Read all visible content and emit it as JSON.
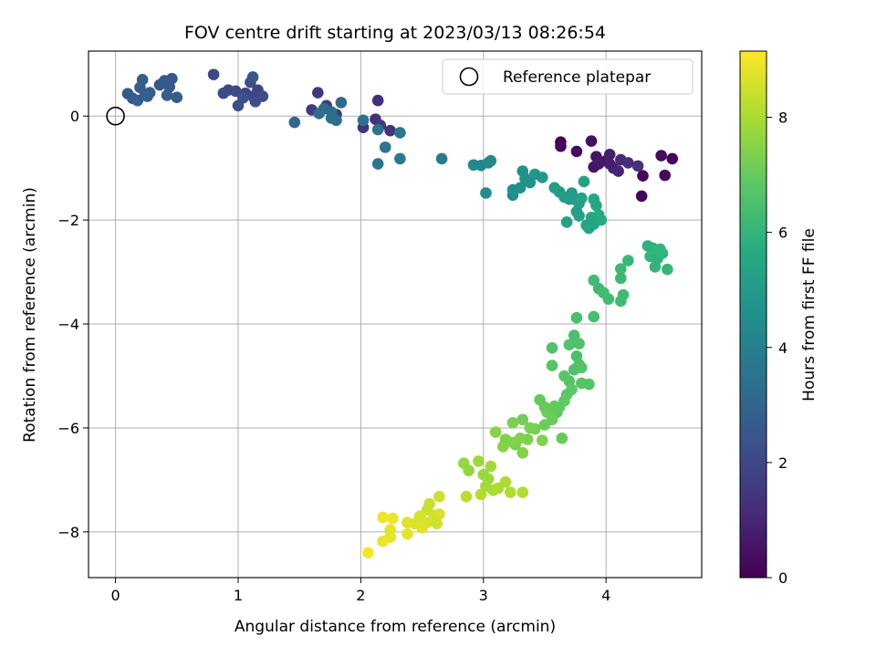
{
  "chart_data": {
    "type": "scatter",
    "title": "FOV centre drift starting at 2023/03/13 08:26:54",
    "xlabel": "Angular distance from reference (arcmin)",
    "ylabel": "Rotation from reference (arcmin)",
    "xlim": [
      -0.22,
      4.78
    ],
    "ylim": [
      -8.88,
      1.25
    ],
    "x_ticks": [
      0,
      1,
      2,
      3,
      4
    ],
    "y_ticks": [
      0,
      -2,
      -4,
      -6,
      -8
    ],
    "grid": true,
    "legend": {
      "placement": "top-right",
      "entries": [
        "Reference platepar"
      ]
    },
    "reference_point": {
      "x": 0,
      "y": 0
    },
    "colorbar": {
      "label": "Hours from first FF file",
      "range": [
        0,
        9.15
      ],
      "ticks": [
        0,
        2,
        4,
        6,
        8
      ],
      "colormap": "viridis"
    },
    "points": [
      [
        3.63,
        -0.5,
        0.1
      ],
      [
        3.63,
        -0.58,
        0.2
      ],
      [
        3.76,
        -0.68,
        0.3
      ],
      [
        3.88,
        -0.48,
        0.4
      ],
      [
        3.92,
        -0.78,
        0.5
      ],
      [
        3.94,
        -0.92,
        0.6
      ],
      [
        4.0,
        -0.86,
        0.7
      ],
      [
        4.03,
        -0.74,
        0.8
      ],
      [
        4.06,
        -1.0,
        0.9
      ],
      [
        4.1,
        -1.06,
        1.0
      ],
      [
        4.12,
        -0.84,
        1.1
      ],
      [
        4.18,
        -0.9,
        1.2
      ],
      [
        4.26,
        -0.96,
        1.3
      ],
      [
        4.3,
        -1.15,
        0.2
      ],
      [
        4.29,
        -1.54,
        0.1
      ],
      [
        4.45,
        -0.76,
        0.3
      ],
      [
        4.48,
        -1.14,
        0.2
      ],
      [
        4.54,
        -0.82,
        0.1
      ],
      [
        3.9,
        -0.98,
        0.5
      ],
      [
        3.95,
        -0.88,
        0.6
      ],
      [
        4.03,
        -0.92,
        0.8
      ],
      [
        2.02,
        -0.22,
        1.4
      ],
      [
        2.12,
        -0.06,
        1.3
      ],
      [
        2.14,
        0.3,
        1.2
      ],
      [
        2.16,
        -0.18,
        1.5
      ],
      [
        2.24,
        -0.28,
        1.4
      ],
      [
        1.6,
        0.12,
        1.6
      ],
      [
        1.65,
        0.45,
        1.5
      ],
      [
        1.8,
        0.03,
        1.5
      ],
      [
        1.72,
        0.2,
        1.6
      ],
      [
        0.8,
        0.8,
        2.0
      ],
      [
        0.88,
        0.44,
        2.1
      ],
      [
        0.98,
        0.48,
        2.0
      ],
      [
        1.06,
        0.44,
        1.9
      ],
      [
        1.1,
        0.65,
        2.2
      ],
      [
        1.12,
        0.38,
        2.0
      ],
      [
        1.16,
        0.5,
        1.9
      ],
      [
        1.2,
        0.38,
        2.1
      ],
      [
        0.92,
        0.5,
        2.1
      ],
      [
        1.0,
        0.2,
        2.3
      ],
      [
        1.04,
        0.35,
        2.4
      ],
      [
        1.12,
        0.75,
        2.5
      ],
      [
        1.14,
        0.28,
        2.2
      ],
      [
        0.1,
        0.43,
        2.6
      ],
      [
        0.14,
        0.34,
        2.6
      ],
      [
        0.18,
        0.3,
        2.7
      ],
      [
        0.2,
        0.55,
        2.7
      ],
      [
        0.22,
        0.7,
        2.8
      ],
      [
        0.24,
        0.4,
        2.6
      ],
      [
        0.28,
        0.45,
        2.7
      ],
      [
        0.36,
        0.6,
        2.5
      ],
      [
        0.4,
        0.68,
        2.6
      ],
      [
        0.42,
        0.4,
        2.7
      ],
      [
        0.44,
        0.56,
        2.6
      ],
      [
        0.46,
        0.72,
        2.5
      ],
      [
        0.5,
        0.36,
        2.8
      ],
      [
        0.26,
        0.38,
        2.9
      ],
      [
        1.46,
        -0.12,
        3.1
      ],
      [
        1.66,
        0.05,
        3.2
      ],
      [
        1.7,
        0.14,
        3.2
      ],
      [
        1.76,
        0.08,
        3.3
      ],
      [
        1.8,
        -0.08,
        3.3
      ],
      [
        1.84,
        0.26,
        3.2
      ],
      [
        1.76,
        -0.04,
        3.4
      ],
      [
        2.02,
        -0.08,
        3.5
      ],
      [
        2.14,
        -0.26,
        3.5
      ],
      [
        2.2,
        -0.6,
        3.6
      ],
      [
        2.14,
        -0.92,
        3.6
      ],
      [
        2.32,
        -0.32,
        3.7
      ],
      [
        2.32,
        -0.82,
        3.7
      ],
      [
        2.66,
        -0.82,
        3.8
      ],
      [
        2.92,
        -0.94,
        4.2
      ],
      [
        2.98,
        -0.95,
        4.2
      ],
      [
        3.04,
        -0.9,
        4.3
      ],
      [
        3.06,
        -0.86,
        4.3
      ],
      [
        3.02,
        -1.48,
        4.4
      ],
      [
        3.24,
        -1.42,
        4.5
      ],
      [
        3.24,
        -1.52,
        4.5
      ],
      [
        3.3,
        -1.38,
        4.6
      ],
      [
        3.32,
        -1.06,
        4.6
      ],
      [
        3.34,
        -1.2,
        4.7
      ],
      [
        3.38,
        -1.28,
        4.7
      ],
      [
        3.42,
        -1.12,
        4.8
      ],
      [
        3.48,
        -1.18,
        4.8
      ],
      [
        3.58,
        -1.38,
        5.0
      ],
      [
        3.62,
        -1.46,
        5.0
      ],
      [
        3.66,
        -1.56,
        5.1
      ],
      [
        3.7,
        -1.6,
        5.1
      ],
      [
        3.72,
        -1.48,
        5.2
      ],
      [
        3.74,
        -1.6,
        5.2
      ],
      [
        3.76,
        -1.84,
        5.1
      ],
      [
        3.78,
        -1.92,
        5.3
      ],
      [
        3.78,
        -1.68,
        5.2
      ],
      [
        3.8,
        -1.58,
        5.3
      ],
      [
        3.82,
        -1.26,
        5.3
      ],
      [
        3.84,
        -2.1,
        5.4
      ],
      [
        3.86,
        -2.16,
        5.4
      ],
      [
        3.88,
        -1.95,
        5.5
      ],
      [
        3.9,
        -2.08,
        5.4
      ],
      [
        3.9,
        -1.6,
        5.5
      ],
      [
        3.92,
        -1.72,
        5.5
      ],
      [
        3.94,
        -1.9,
        5.6
      ],
      [
        3.96,
        -2.0,
        5.6
      ],
      [
        3.68,
        -2.04,
        5.3
      ],
      [
        3.72,
        -1.5,
        5.0
      ],
      [
        4.34,
        -2.5,
        5.9
      ],
      [
        4.38,
        -2.54,
        5.9
      ],
      [
        4.36,
        -2.7,
        6.0
      ],
      [
        4.4,
        -2.9,
        6.0
      ],
      [
        4.42,
        -2.74,
        5.9
      ],
      [
        4.44,
        -2.56,
        6.0
      ],
      [
        4.46,
        -2.64,
        6.0
      ],
      [
        4.5,
        -2.95,
        6.1
      ],
      [
        4.18,
        -2.78,
        6.1
      ],
      [
        4.12,
        -2.94,
        6.2
      ],
      [
        4.12,
        -3.12,
        6.2
      ],
      [
        4.14,
        -3.44,
        6.3
      ],
      [
        4.12,
        -3.56,
        6.3
      ],
      [
        4.02,
        -3.52,
        6.3
      ],
      [
        3.9,
        -3.16,
        6.3
      ],
      [
        3.94,
        -3.32,
        6.2
      ],
      [
        3.98,
        -3.4,
        6.3
      ],
      [
        3.9,
        -3.86,
        6.4
      ],
      [
        3.76,
        -3.88,
        6.5
      ],
      [
        3.74,
        -4.22,
        6.5
      ],
      [
        3.76,
        -4.62,
        6.5
      ],
      [
        3.78,
        -4.38,
        6.6
      ],
      [
        3.7,
        -4.4,
        6.6
      ],
      [
        3.78,
        -4.78,
        6.6
      ],
      [
        3.74,
        -4.88,
        6.6
      ],
      [
        3.8,
        -4.84,
        6.7
      ],
      [
        3.8,
        -5.14,
        6.7
      ],
      [
        3.86,
        -5.16,
        6.7
      ],
      [
        3.7,
        -5.1,
        6.7
      ],
      [
        3.66,
        -5.0,
        6.8
      ],
      [
        3.72,
        -5.26,
        6.8
      ],
      [
        3.68,
        -5.36,
        6.8
      ],
      [
        3.66,
        -5.48,
        6.9
      ],
      [
        3.62,
        -5.6,
        6.9
      ],
      [
        3.6,
        -5.7,
        6.9
      ],
      [
        3.56,
        -4.46,
        6.6
      ],
      [
        3.56,
        -4.8,
        6.7
      ],
      [
        3.64,
        -6.2,
        7.0
      ],
      [
        3.46,
        -5.46,
        7.0
      ],
      [
        3.5,
        -5.6,
        7.0
      ],
      [
        3.52,
        -5.7,
        7.1
      ],
      [
        3.5,
        -5.94,
        7.1
      ],
      [
        3.56,
        -5.84,
        7.1
      ],
      [
        3.58,
        -5.58,
        7.0
      ],
      [
        3.42,
        -6.02,
        7.2
      ],
      [
        3.36,
        -6.22,
        7.3
      ],
      [
        3.32,
        -5.84,
        7.2
      ],
      [
        3.26,
        -6.32,
        7.3
      ],
      [
        3.24,
        -5.9,
        7.3
      ],
      [
        3.24,
        -6.28,
        7.4
      ],
      [
        3.32,
        -6.48,
        7.4
      ],
      [
        3.3,
        -6.2,
        7.4
      ],
      [
        3.18,
        -6.22,
        7.4
      ],
      [
        3.16,
        -6.36,
        7.5
      ],
      [
        3.1,
        -6.08,
        7.5
      ],
      [
        3.48,
        -6.24,
        7.4
      ],
      [
        3.38,
        -6.0,
        7.3
      ],
      [
        2.84,
        -6.68,
        7.7
      ],
      [
        2.88,
        -6.82,
        7.7
      ],
      [
        2.96,
        -6.64,
        7.8
      ],
      [
        3.0,
        -6.9,
        7.8
      ],
      [
        3.04,
        -6.98,
        7.8
      ],
      [
        3.06,
        -6.74,
        7.9
      ],
      [
        3.02,
        -7.12,
        7.9
      ],
      [
        3.08,
        -7.2,
        8.0
      ],
      [
        3.12,
        -7.16,
        8.0
      ],
      [
        3.18,
        -7.04,
        8.0
      ],
      [
        3.22,
        -7.24,
        8.1
      ],
      [
        3.32,
        -7.24,
        8.1
      ],
      [
        2.98,
        -7.28,
        8.1
      ],
      [
        2.86,
        -7.32,
        8.2
      ],
      [
        2.54,
        -7.58,
        8.4
      ],
      [
        2.56,
        -7.46,
        8.4
      ],
      [
        2.64,
        -7.32,
        8.5
      ],
      [
        2.6,
        -7.68,
        8.5
      ],
      [
        2.64,
        -7.66,
        8.6
      ],
      [
        2.54,
        -7.82,
        8.6
      ],
      [
        2.5,
        -7.92,
        8.7
      ],
      [
        2.44,
        -7.84,
        8.7
      ],
      [
        2.38,
        -7.82,
        8.7
      ],
      [
        2.38,
        -8.04,
        8.8
      ],
      [
        2.24,
        -7.96,
        8.8
      ],
      [
        2.24,
        -8.1,
        8.8
      ],
      [
        2.18,
        -8.18,
        8.9
      ],
      [
        2.26,
        -7.74,
        8.9
      ],
      [
        2.18,
        -7.72,
        8.9
      ],
      [
        2.06,
        -8.4,
        9.0
      ],
      [
        2.48,
        -7.7,
        8.6
      ],
      [
        2.62,
        -7.84,
        8.5
      ]
    ]
  }
}
